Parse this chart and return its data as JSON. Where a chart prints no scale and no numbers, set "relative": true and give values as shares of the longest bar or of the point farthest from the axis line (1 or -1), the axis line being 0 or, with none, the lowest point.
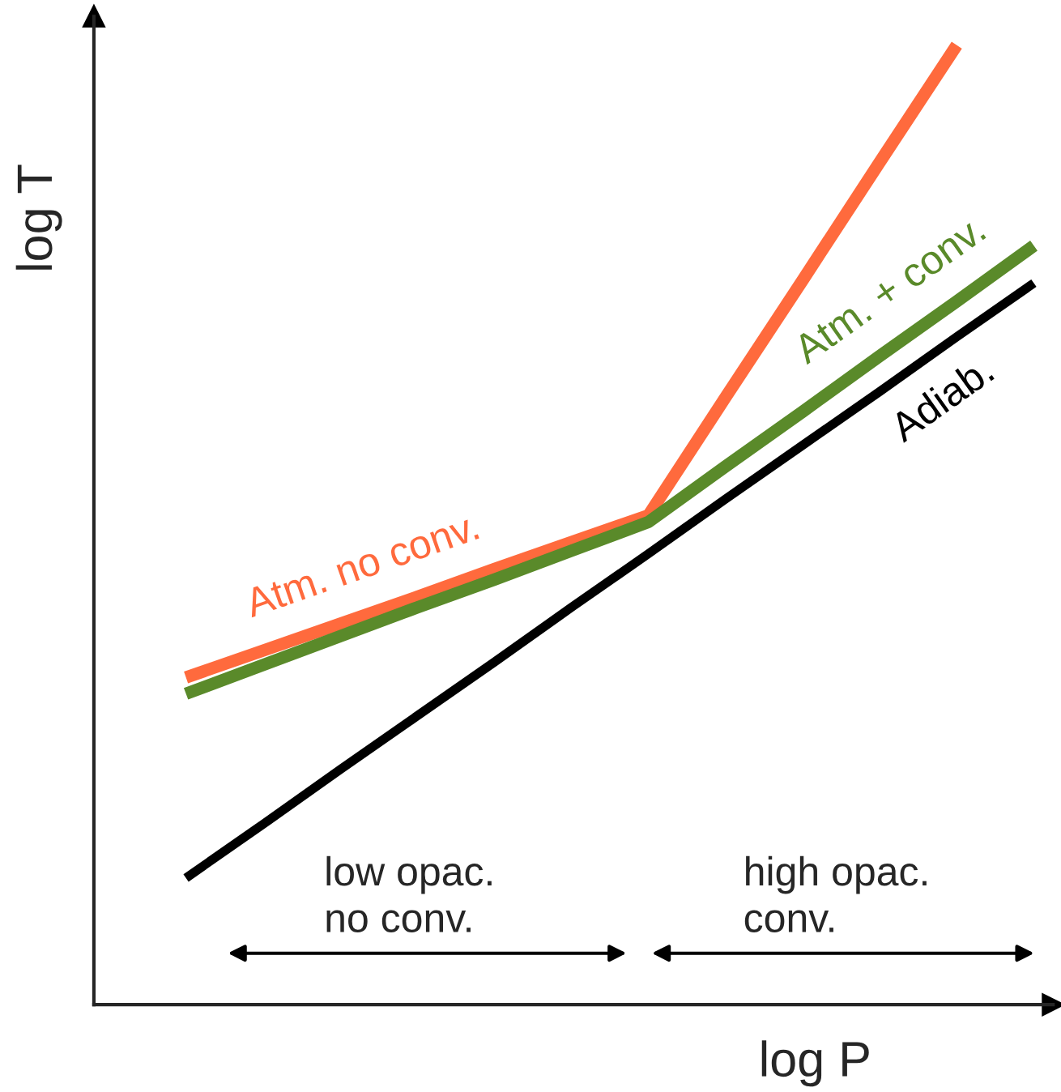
{
  "chart_data": {
    "type": "line",
    "relative": true,
    "xlabel": "log P",
    "ylabel": "log T",
    "legend": false,
    "line_style": "solid",
    "marker": "none",
    "categories": [
      null,
      null,
      null,
      null,
      null,
      null,
      null,
      null,
      null,
      null,
      null,
      null
    ],
    "series": [
      {
        "name": "Atm. no conv.",
        "color": "#ff6a3d",
        "values": [
          0.341,
          0.369,
          0.397,
          0.425,
          0.454,
          0.482,
          0.51,
          0.633,
          0.755,
          0.878,
          1.0,
          null
        ]
      },
      {
        "name": "Atm. + conv.",
        "color": "#5a8a2a",
        "values": [
          0.324,
          0.354,
          0.384,
          0.414,
          0.443,
          0.473,
          0.503,
          0.561,
          0.618,
          0.676,
          0.733,
          0.791
        ]
      },
      {
        "name": "Adiab.",
        "color": "#000000",
        "values": [
          0.132,
          0.188,
          0.245,
          0.301,
          0.357,
          0.414,
          0.47,
          0.527,
          0.583,
          0.639,
          0.696,
          0.752
        ]
      }
    ],
    "annotations": [
      "low opac.\nno conv.",
      "high opac.\nconv."
    ]
  }
}
